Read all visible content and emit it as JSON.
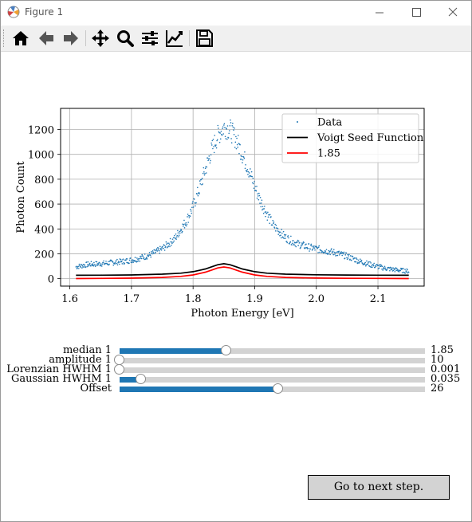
{
  "window": {
    "title": "Figure 1",
    "minimize_symbol": "—",
    "maximize_symbol": "☐",
    "close_symbol": "✕"
  },
  "toolbar": {
    "items": [
      "home-icon",
      "back-icon",
      "forward-icon",
      "pan-icon",
      "zoom-icon",
      "configure-subplots-icon",
      "edit-axis-icon",
      "save-icon"
    ]
  },
  "chart_data": {
    "type": "scatter",
    "title": "",
    "xlabel": "Photon Energy [eV]",
    "ylabel": "Photon Count",
    "xlim": [
      1.585,
      2.175
    ],
    "ylim": [
      -60,
      1370
    ],
    "xticks": [
      1.6,
      1.7,
      1.8,
      1.9,
      2.0,
      2.1
    ],
    "xtick_labels": [
      "1.6",
      "1.7",
      "1.8",
      "1.9",
      "2.0",
      "2.1"
    ],
    "yticks": [
      0,
      200,
      400,
      600,
      800,
      1000,
      1200
    ],
    "ytick_labels": [
      "0",
      "200",
      "400",
      "600",
      "800",
      "1000",
      "1200"
    ],
    "grid": true,
    "legend_position": "top-right",
    "series": [
      {
        "name": "Data",
        "kind": "scatter",
        "color": "#1f77b4",
        "x": [
          1.61,
          1.63,
          1.65,
          1.67,
          1.69,
          1.71,
          1.73,
          1.75,
          1.77,
          1.79,
          1.8,
          1.81,
          1.82,
          1.83,
          1.84,
          1.85,
          1.86,
          1.87,
          1.88,
          1.89,
          1.9,
          1.91,
          1.92,
          1.93,
          1.95,
          1.97,
          1.99,
          2.01,
          2.03,
          2.05,
          2.07,
          2.09,
          2.11,
          2.13,
          2.15
        ],
        "y": [
          95,
          115,
          120,
          130,
          140,
          160,
          190,
          240,
          320,
          470,
          580,
          720,
          880,
          1030,
          1150,
          1220,
          1200,
          1120,
          1000,
          880,
          740,
          620,
          520,
          430,
          330,
          280,
          250,
          230,
          210,
          180,
          140,
          110,
          85,
          70,
          60
        ]
      },
      {
        "name": "Voigt Seed Function",
        "kind": "line",
        "color": "#000000",
        "x": [
          1.61,
          1.65,
          1.7,
          1.75,
          1.78,
          1.8,
          1.82,
          1.83,
          1.84,
          1.85,
          1.86,
          1.87,
          1.88,
          1.9,
          1.92,
          1.95,
          2.0,
          2.05,
          2.1,
          2.15
        ],
        "y": [
          27,
          28,
          30,
          36,
          44,
          56,
          78,
          95,
          112,
          120,
          112,
          95,
          78,
          56,
          44,
          36,
          31,
          29,
          28,
          27
        ]
      },
      {
        "name": "1.85",
        "kind": "line",
        "color": "#ff0000",
        "x": [
          1.61,
          1.65,
          1.7,
          1.75,
          1.78,
          1.8,
          1.82,
          1.83,
          1.84,
          1.85,
          1.86,
          1.87,
          1.88,
          1.9,
          1.92,
          1.95,
          2.0,
          2.05,
          2.1,
          2.15
        ],
        "y": [
          1,
          2,
          4,
          10,
          18,
          30,
          52,
          69,
          86,
          94,
          86,
          69,
          52,
          30,
          18,
          10,
          5,
          3,
          2,
          1
        ]
      }
    ]
  },
  "sliders": [
    {
      "label": "median 1",
      "value": "1.85",
      "fraction": 0.35
    },
    {
      "label": "amplitude 1",
      "value": "10",
      "fraction": 0.0
    },
    {
      "label": "Lorenzian HWHM 1",
      "value": "0.001",
      "fraction": 0.0
    },
    {
      "label": "Gaussian HWHM 1",
      "value": "0.035",
      "fraction": 0.07
    },
    {
      "label": "Offset",
      "value": "26",
      "fraction": 0.52
    }
  ],
  "next_button": {
    "label": "Go to next step."
  }
}
